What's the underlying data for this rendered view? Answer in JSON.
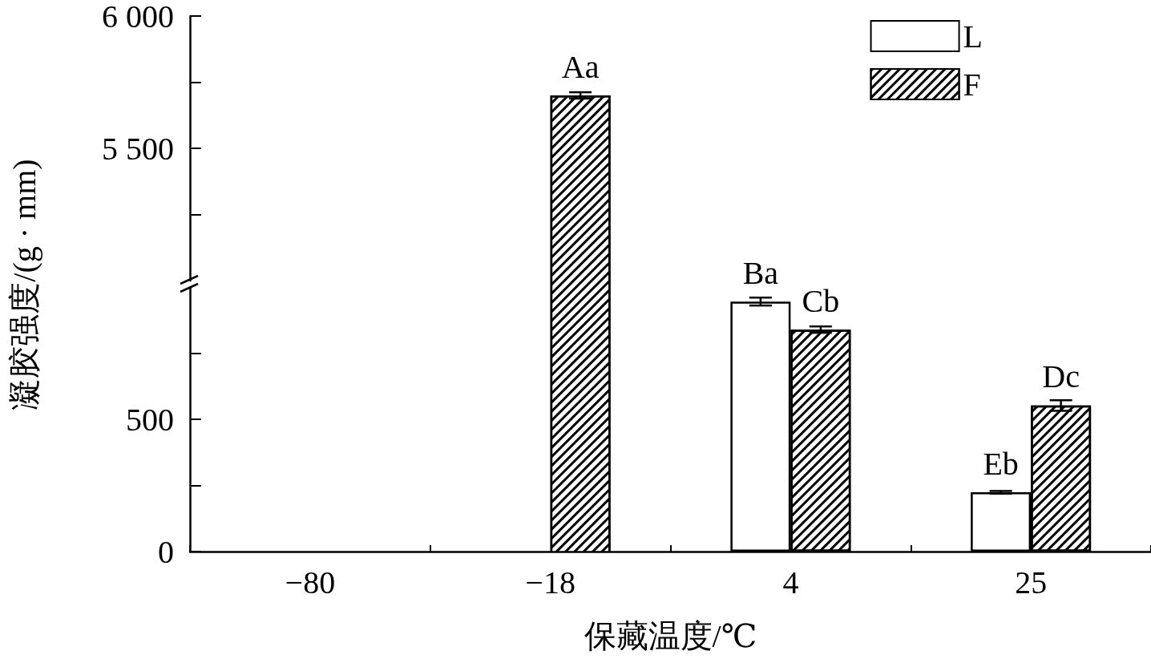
{
  "chart_data": [
    {
      "type": "bar",
      "categories": [
        "−80",
        "−18",
        "4",
        "25"
      ],
      "ylim": [
        5000,
        6000
      ],
      "yticks": [
        {
          "value": 5250,
          "label": null
        },
        {
          "value": 5500,
          "label": "5 500"
        },
        {
          "value": 5750,
          "label": null
        },
        {
          "value": 6000,
          "label": "6 000"
        }
      ],
      "tick_labels": "y",
      "grid": false,
      "series": [
        {
          "color": "#000000",
          "values": [
            null,
            null,
            null,
            null
          ]
        },
        {
          "color": "#000000",
          "values": [
            null,
            5700,
            null,
            null
          ],
          "errors": [
            null,
            12,
            null,
            null
          ],
          "value_labels": [
            null,
            "Aa",
            null,
            null
          ]
        }
      ]
    },
    {
      "type": "bar",
      "categories": [
        "−80",
        "−18",
        "4",
        "25"
      ],
      "xlabel": "保藏温度/℃",
      "ylabel": "凝胶强度/(g · mm)",
      "ylim": [
        0,
        1000
      ],
      "yticks": [
        0,
        {
          "value": 250,
          "label": null
        },
        500,
        {
          "value": 750,
          "label": null
        }
      ],
      "legend": "top right",
      "grid": false,
      "series": [
        {
          "name": "L",
          "color": "#000000",
          "values": [
            null,
            null,
            945,
            224
          ],
          "errors": [
            null,
            null,
            15,
            5
          ],
          "value_labels": [
            null,
            null,
            "Ba",
            "Eb"
          ]
        },
        {
          "name": "F",
          "color": "#000000",
          "values": [
            null,
            null,
            839,
            552
          ],
          "errors": [
            null,
            null,
            12,
            20
          ],
          "value_labels": [
            null,
            null,
            "Cb",
            "Dc"
          ]
        }
      ]
    }
  ]
}
